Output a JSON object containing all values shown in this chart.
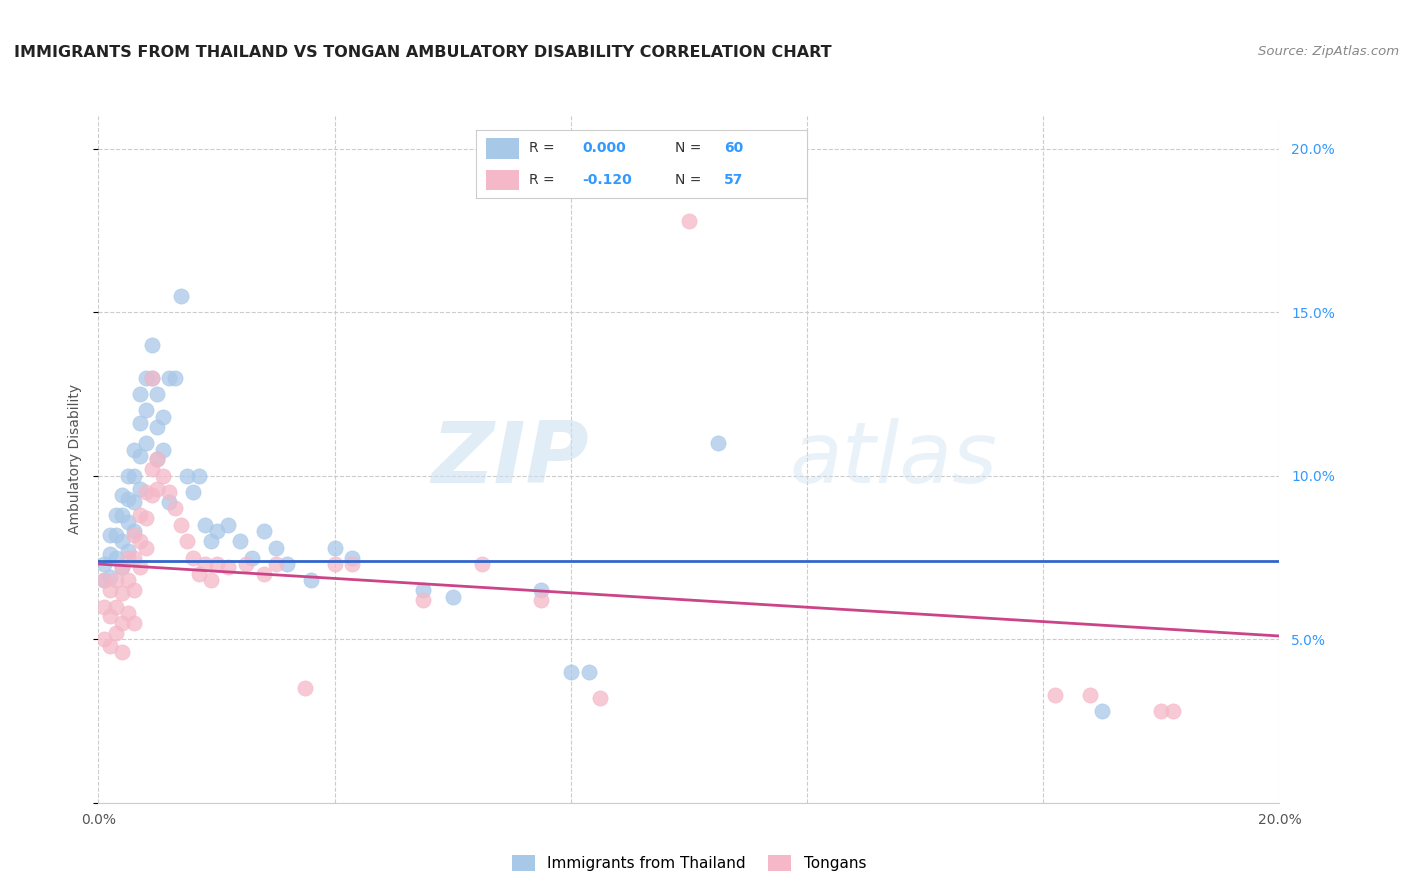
{
  "title": "IMMIGRANTS FROM THAILAND VS TONGAN AMBULATORY DISABILITY CORRELATION CHART",
  "source": "Source: ZipAtlas.com",
  "ylabel": "Ambulatory Disability",
  "xlim": [
    0.0,
    0.2
  ],
  "ylim": [
    0.0,
    0.21
  ],
  "ytick_vals": [
    0.0,
    0.05,
    0.1,
    0.15,
    0.2
  ],
  "xtick_vals": [
    0.0,
    0.04,
    0.08,
    0.12,
    0.16,
    0.2
  ],
  "legend1_label": "Immigrants from Thailand",
  "legend2_label": "Tongans",
  "R1": "0.000",
  "N1": "60",
  "R2": "-0.120",
  "N2": "57",
  "color_blue": "#a8c8e8",
  "color_pink": "#f4b8c8",
  "line_blue": "#3366cc",
  "line_pink": "#cc4488",
  "watermark_zip": "ZIP",
  "watermark_atlas": "atlas",
  "title_color": "#222222",
  "right_axis_color": "#3399ff",
  "blue_scatter": [
    [
      0.001,
      0.073
    ],
    [
      0.001,
      0.068
    ],
    [
      0.002,
      0.082
    ],
    [
      0.002,
      0.076
    ],
    [
      0.002,
      0.069
    ],
    [
      0.003,
      0.088
    ],
    [
      0.003,
      0.082
    ],
    [
      0.003,
      0.075
    ],
    [
      0.004,
      0.094
    ],
    [
      0.004,
      0.088
    ],
    [
      0.004,
      0.08
    ],
    [
      0.004,
      0.072
    ],
    [
      0.005,
      0.1
    ],
    [
      0.005,
      0.093
    ],
    [
      0.005,
      0.086
    ],
    [
      0.005,
      0.077
    ],
    [
      0.006,
      0.108
    ],
    [
      0.006,
      0.1
    ],
    [
      0.006,
      0.092
    ],
    [
      0.006,
      0.083
    ],
    [
      0.007,
      0.125
    ],
    [
      0.007,
      0.116
    ],
    [
      0.007,
      0.106
    ],
    [
      0.007,
      0.096
    ],
    [
      0.008,
      0.13
    ],
    [
      0.008,
      0.12
    ],
    [
      0.008,
      0.11
    ],
    [
      0.009,
      0.14
    ],
    [
      0.009,
      0.13
    ],
    [
      0.01,
      0.125
    ],
    [
      0.01,
      0.115
    ],
    [
      0.01,
      0.105
    ],
    [
      0.011,
      0.118
    ],
    [
      0.011,
      0.108
    ],
    [
      0.012,
      0.13
    ],
    [
      0.012,
      0.092
    ],
    [
      0.013,
      0.13
    ],
    [
      0.014,
      0.155
    ],
    [
      0.015,
      0.1
    ],
    [
      0.016,
      0.095
    ],
    [
      0.017,
      0.1
    ],
    [
      0.018,
      0.085
    ],
    [
      0.019,
      0.08
    ],
    [
      0.02,
      0.083
    ],
    [
      0.022,
      0.085
    ],
    [
      0.024,
      0.08
    ],
    [
      0.026,
      0.075
    ],
    [
      0.028,
      0.083
    ],
    [
      0.03,
      0.078
    ],
    [
      0.032,
      0.073
    ],
    [
      0.036,
      0.068
    ],
    [
      0.04,
      0.078
    ],
    [
      0.043,
      0.075
    ],
    [
      0.055,
      0.065
    ],
    [
      0.06,
      0.063
    ],
    [
      0.075,
      0.065
    ],
    [
      0.08,
      0.04
    ],
    [
      0.083,
      0.04
    ],
    [
      0.105,
      0.11
    ],
    [
      0.17,
      0.028
    ]
  ],
  "pink_scatter": [
    [
      0.001,
      0.068
    ],
    [
      0.001,
      0.06
    ],
    [
      0.001,
      0.05
    ],
    [
      0.002,
      0.065
    ],
    [
      0.002,
      0.057
    ],
    [
      0.002,
      0.048
    ],
    [
      0.003,
      0.068
    ],
    [
      0.003,
      0.06
    ],
    [
      0.003,
      0.052
    ],
    [
      0.004,
      0.072
    ],
    [
      0.004,
      0.064
    ],
    [
      0.004,
      0.055
    ],
    [
      0.004,
      0.046
    ],
    [
      0.005,
      0.075
    ],
    [
      0.005,
      0.068
    ],
    [
      0.005,
      0.058
    ],
    [
      0.006,
      0.082
    ],
    [
      0.006,
      0.075
    ],
    [
      0.006,
      0.065
    ],
    [
      0.006,
      0.055
    ],
    [
      0.007,
      0.088
    ],
    [
      0.007,
      0.08
    ],
    [
      0.007,
      0.072
    ],
    [
      0.008,
      0.095
    ],
    [
      0.008,
      0.087
    ],
    [
      0.008,
      0.078
    ],
    [
      0.009,
      0.13
    ],
    [
      0.009,
      0.102
    ],
    [
      0.009,
      0.094
    ],
    [
      0.01,
      0.105
    ],
    [
      0.01,
      0.096
    ],
    [
      0.011,
      0.1
    ],
    [
      0.012,
      0.095
    ],
    [
      0.013,
      0.09
    ],
    [
      0.014,
      0.085
    ],
    [
      0.015,
      0.08
    ],
    [
      0.016,
      0.075
    ],
    [
      0.017,
      0.07
    ],
    [
      0.018,
      0.073
    ],
    [
      0.019,
      0.068
    ],
    [
      0.02,
      0.073
    ],
    [
      0.022,
      0.072
    ],
    [
      0.025,
      0.073
    ],
    [
      0.028,
      0.07
    ],
    [
      0.03,
      0.073
    ],
    [
      0.035,
      0.035
    ],
    [
      0.04,
      0.073
    ],
    [
      0.043,
      0.073
    ],
    [
      0.055,
      0.062
    ],
    [
      0.065,
      0.073
    ],
    [
      0.075,
      0.062
    ],
    [
      0.085,
      0.032
    ],
    [
      0.1,
      0.178
    ],
    [
      0.162,
      0.033
    ],
    [
      0.168,
      0.033
    ],
    [
      0.18,
      0.028
    ],
    [
      0.182,
      0.028
    ]
  ],
  "blue_line_x": [
    0.0,
    0.2
  ],
  "blue_line_y": [
    0.074,
    0.074
  ],
  "pink_line_x": [
    0.0,
    0.2
  ],
  "pink_line_y": [
    0.073,
    0.051
  ]
}
